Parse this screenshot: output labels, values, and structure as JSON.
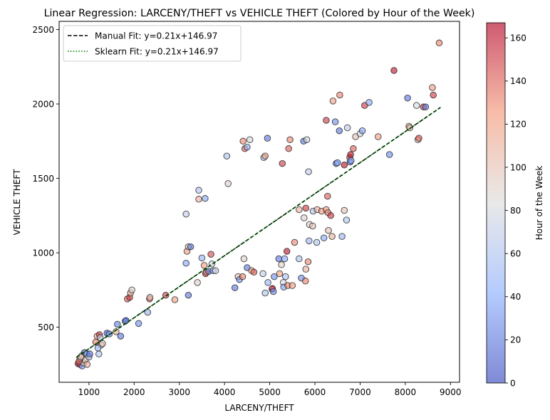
{
  "chart_data": {
    "type": "scatter",
    "title": "Linear Regression: LARCENY/THEFT vs VEHICLE THEFT (Colored by Hour of the Week)",
    "xlabel": "LARCENY/THEFT",
    "ylabel": "VEHICLE THEFT",
    "xlim": [
      340,
      9200
    ],
    "ylim": [
      130,
      2555
    ],
    "xticks": [
      1000,
      2000,
      3000,
      4000,
      5000,
      6000,
      7000,
      8000,
      9000
    ],
    "yticks": [
      500,
      1000,
      1500,
      2000,
      2500
    ],
    "colorbar": {
      "label": "Hour of the Week",
      "range": [
        0,
        167
      ],
      "ticks": [
        0,
        20,
        40,
        60,
        80,
        100,
        120,
        140,
        160
      ],
      "colormap": "coolwarm",
      "stops": [
        "#3b4cc0",
        "#8db0fe",
        "#dddddd",
        "#f49a7b",
        "#b40426"
      ]
    },
    "legend": {
      "position": "top-left",
      "entries": [
        {
          "label": "Manual Fit: y=0.21x+146.97",
          "color": "#000000",
          "style": "dashed"
        },
        {
          "label": "Sklearn Fit: y=0.21x+146.97",
          "color": "#008000",
          "style": "dotted"
        }
      ]
    },
    "fits": [
      {
        "name": "Manual Fit",
        "slope": 0.2084,
        "intercept": 146.97,
        "x_range": [
          720,
          8780
        ],
        "color": "#000000",
        "style": "dashed"
      },
      {
        "name": "Sklearn Fit",
        "slope": 0.2084,
        "intercept": 146.97,
        "x_range": [
          720,
          8780
        ],
        "color": "#008000",
        "style": "dotted"
      }
    ],
    "points": [
      [
        760,
        255,
        160
      ],
      [
        800,
        250,
        150
      ],
      [
        850,
        240,
        30
      ],
      [
        880,
        260,
        90
      ],
      [
        920,
        280,
        100
      ],
      [
        800,
        290,
        70
      ],
      [
        850,
        310,
        120
      ],
      [
        900,
        330,
        10
      ],
      [
        950,
        320,
        40
      ],
      [
        1000,
        300,
        60
      ],
      [
        780,
        270,
        140
      ],
      [
        820,
        300,
        95
      ],
      [
        960,
        250,
        110
      ],
      [
        1020,
        320,
        20
      ],
      [
        1150,
        400,
        130
      ],
      [
        1180,
        440,
        120
      ],
      [
        1230,
        450,
        150
      ],
      [
        1250,
        430,
        70
      ],
      [
        1270,
        380,
        90
      ],
      [
        1300,
        390,
        100
      ],
      [
        1200,
        360,
        50
      ],
      [
        1220,
        320,
        60
      ],
      [
        1400,
        460,
        10
      ],
      [
        1450,
        455,
        30
      ],
      [
        1600,
        470,
        110
      ],
      [
        1630,
        520,
        25
      ],
      [
        1700,
        440,
        20
      ],
      [
        1800,
        540,
        40
      ],
      [
        1820,
        545,
        10
      ],
      [
        1850,
        690,
        140
      ],
      [
        1900,
        700,
        150
      ],
      [
        1920,
        730,
        110
      ],
      [
        1950,
        750,
        90
      ],
      [
        2100,
        525,
        30
      ],
      [
        2300,
        600,
        50
      ],
      [
        2340,
        690,
        140
      ],
      [
        2350,
        700,
        100
      ],
      [
        2700,
        715,
        150
      ],
      [
        2900,
        685,
        120
      ],
      [
        3150,
        1260,
        70
      ],
      [
        3150,
        930,
        40
      ],
      [
        3170,
        1010,
        120
      ],
      [
        3200,
        715,
        20
      ],
      [
        3200,
        1040,
        100
      ],
      [
        3250,
        1040,
        20
      ],
      [
        3400,
        800,
        90
      ],
      [
        3430,
        1420,
        60
      ],
      [
        3430,
        1360,
        110
      ],
      [
        3500,
        965,
        50
      ],
      [
        3550,
        915,
        120
      ],
      [
        3570,
        1365,
        40
      ],
      [
        3580,
        860,
        150
      ],
      [
        3600,
        870,
        130
      ],
      [
        3650,
        875,
        20
      ],
      [
        3700,
        990,
        145
      ],
      [
        3720,
        925,
        80
      ],
      [
        3750,
        880,
        40
      ],
      [
        3800,
        880,
        80
      ],
      [
        4050,
        1650,
        60
      ],
      [
        4080,
        1465,
        90
      ],
      [
        4230,
        765,
        20
      ],
      [
        4300,
        840,
        100
      ],
      [
        4330,
        820,
        30
      ],
      [
        4400,
        840,
        130
      ],
      [
        4410,
        1750,
        130
      ],
      [
        4430,
        960,
        90
      ],
      [
        4450,
        1700,
        140
      ],
      [
        4500,
        1710,
        50
      ],
      [
        4500,
        900,
        20
      ],
      [
        4560,
        1760,
        80
      ],
      [
        4600,
        880,
        120
      ],
      [
        4650,
        870,
        140
      ],
      [
        4850,
        860,
        70
      ],
      [
        4870,
        1640,
        60
      ],
      [
        4900,
        1650,
        120
      ],
      [
        4900,
        730,
        60
      ],
      [
        4950,
        1770,
        20
      ],
      [
        4960,
        800,
        50
      ],
      [
        5050,
        755,
        80
      ],
      [
        5060,
        760,
        160
      ],
      [
        5080,
        740,
        30
      ],
      [
        5100,
        840,
        30
      ],
      [
        5200,
        960,
        20
      ],
      [
        5220,
        860,
        120
      ],
      [
        5260,
        920,
        90
      ],
      [
        5280,
        1600,
        150
      ],
      [
        5300,
        800,
        80
      ],
      [
        5310,
        770,
        40
      ],
      [
        5330,
        960,
        40
      ],
      [
        5350,
        840,
        60
      ],
      [
        5380,
        1010,
        160
      ],
      [
        5400,
        780,
        130
      ],
      [
        5420,
        1700,
        140
      ],
      [
        5450,
        1760,
        130
      ],
      [
        5500,
        780,
        120
      ],
      [
        5550,
        1070,
        130
      ],
      [
        5650,
        1290,
        110
      ],
      [
        5650,
        960,
        60
      ],
      [
        5700,
        830,
        30
      ],
      [
        5750,
        1750,
        20
      ],
      [
        5760,
        1235,
        90
      ],
      [
        5790,
        810,
        130
      ],
      [
        5800,
        890,
        110
      ],
      [
        5800,
        1300,
        150
      ],
      [
        5820,
        1760,
        80
      ],
      [
        5850,
        940,
        130
      ],
      [
        5860,
        1545,
        70
      ],
      [
        5870,
        1080,
        50
      ],
      [
        5880,
        1190,
        90
      ],
      [
        5950,
        1180,
        100
      ],
      [
        5960,
        1280,
        60
      ],
      [
        6040,
        1070,
        60
      ],
      [
        6050,
        1290,
        110
      ],
      [
        6150,
        1280,
        120
      ],
      [
        6200,
        1100,
        40
      ],
      [
        6250,
        1890,
        150
      ],
      [
        6250,
        1290,
        120
      ],
      [
        6280,
        1380,
        140
      ],
      [
        6290,
        1270,
        130
      ],
      [
        6300,
        1150,
        100
      ],
      [
        6350,
        1250,
        150
      ],
      [
        6380,
        1110,
        110
      ],
      [
        6400,
        2020,
        120
      ],
      [
        6450,
        1880,
        30
      ],
      [
        6470,
        1600,
        20
      ],
      [
        6500,
        1605,
        40
      ],
      [
        6540,
        1820,
        20
      ],
      [
        6550,
        2060,
        130
      ],
      [
        6600,
        1110,
        50
      ],
      [
        6650,
        1285,
        100
      ],
      [
        6650,
        1590,
        160
      ],
      [
        6700,
        1220,
        60
      ],
      [
        6720,
        1840,
        70
      ],
      [
        6770,
        1640,
        150
      ],
      [
        6780,
        1610,
        20
      ],
      [
        6790,
        1660,
        160
      ],
      [
        6800,
        1620,
        40
      ],
      [
        6850,
        1700,
        140
      ],
      [
        6900,
        1780,
        100
      ],
      [
        7000,
        1800,
        80
      ],
      [
        7050,
        1820,
        40
      ],
      [
        7100,
        1990,
        150
      ],
      [
        7200,
        2010,
        40
      ],
      [
        7400,
        1780,
        120
      ],
      [
        7650,
        1660,
        30
      ],
      [
        7750,
        2225,
        160
      ],
      [
        8050,
        2040,
        20
      ],
      [
        8080,
        1850,
        110
      ],
      [
        8100,
        1840,
        100
      ],
      [
        8250,
        1990,
        80
      ],
      [
        8280,
        1760,
        100
      ],
      [
        8300,
        1770,
        140
      ],
      [
        8400,
        1980,
        150
      ],
      [
        8450,
        1980,
        20
      ],
      [
        8600,
        2110,
        120
      ],
      [
        8620,
        2060,
        150
      ],
      [
        8750,
        2410,
        130
      ]
    ]
  }
}
